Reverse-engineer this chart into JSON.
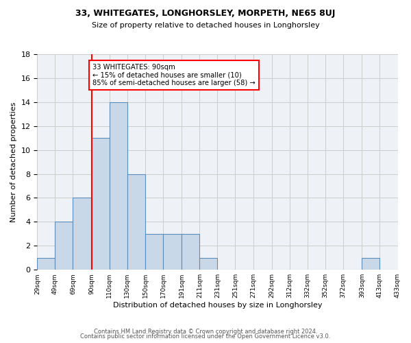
{
  "title1": "33, WHITEGATES, LONGHORSLEY, MORPETH, NE65 8UJ",
  "title2": "Size of property relative to detached houses in Longhorsley",
  "xlabel": "Distribution of detached houses by size in Longhorsley",
  "ylabel": "Number of detached properties",
  "bins": [
    29,
    49,
    69,
    90,
    110,
    130,
    150,
    170,
    191,
    211,
    231,
    251,
    271,
    292,
    312,
    332,
    352,
    372,
    393,
    413,
    433
  ],
  "counts": [
    1,
    4,
    6,
    11,
    14,
    8,
    3,
    3,
    3,
    1,
    0,
    0,
    0,
    0,
    0,
    0,
    0,
    0,
    1,
    0
  ],
  "bar_color": "#c8d8e8",
  "bar_edge_color": "#5b8db8",
  "bar_linewidth": 0.8,
  "vline_x": 90,
  "vline_color": "red",
  "vline_linewidth": 1.5,
  "annotation_box_text": "33 WHITEGATES: 90sqm\n← 15% of detached houses are smaller (10)\n85% of semi-detached houses are larger (58) →",
  "annotation_box_color": "red",
  "annotation_box_bg": "white",
  "ylim": [
    0,
    18
  ],
  "yticks": [
    0,
    2,
    4,
    6,
    8,
    10,
    12,
    14,
    16,
    18
  ],
  "grid_color": "#cccccc",
  "bg_color": "#eef2f7",
  "footer1": "Contains HM Land Registry data © Crown copyright and database right 2024.",
  "footer2": "Contains public sector information licensed under the Open Government Licence v3.0.",
  "tick_labels": [
    "29sqm",
    "49sqm",
    "69sqm",
    "90sqm",
    "110sqm",
    "130sqm",
    "150sqm",
    "170sqm",
    "191sqm",
    "211sqm",
    "231sqm",
    "251sqm",
    "271sqm",
    "292sqm",
    "312sqm",
    "332sqm",
    "352sqm",
    "372sqm",
    "393sqm",
    "413sqm",
    "433sqm"
  ]
}
